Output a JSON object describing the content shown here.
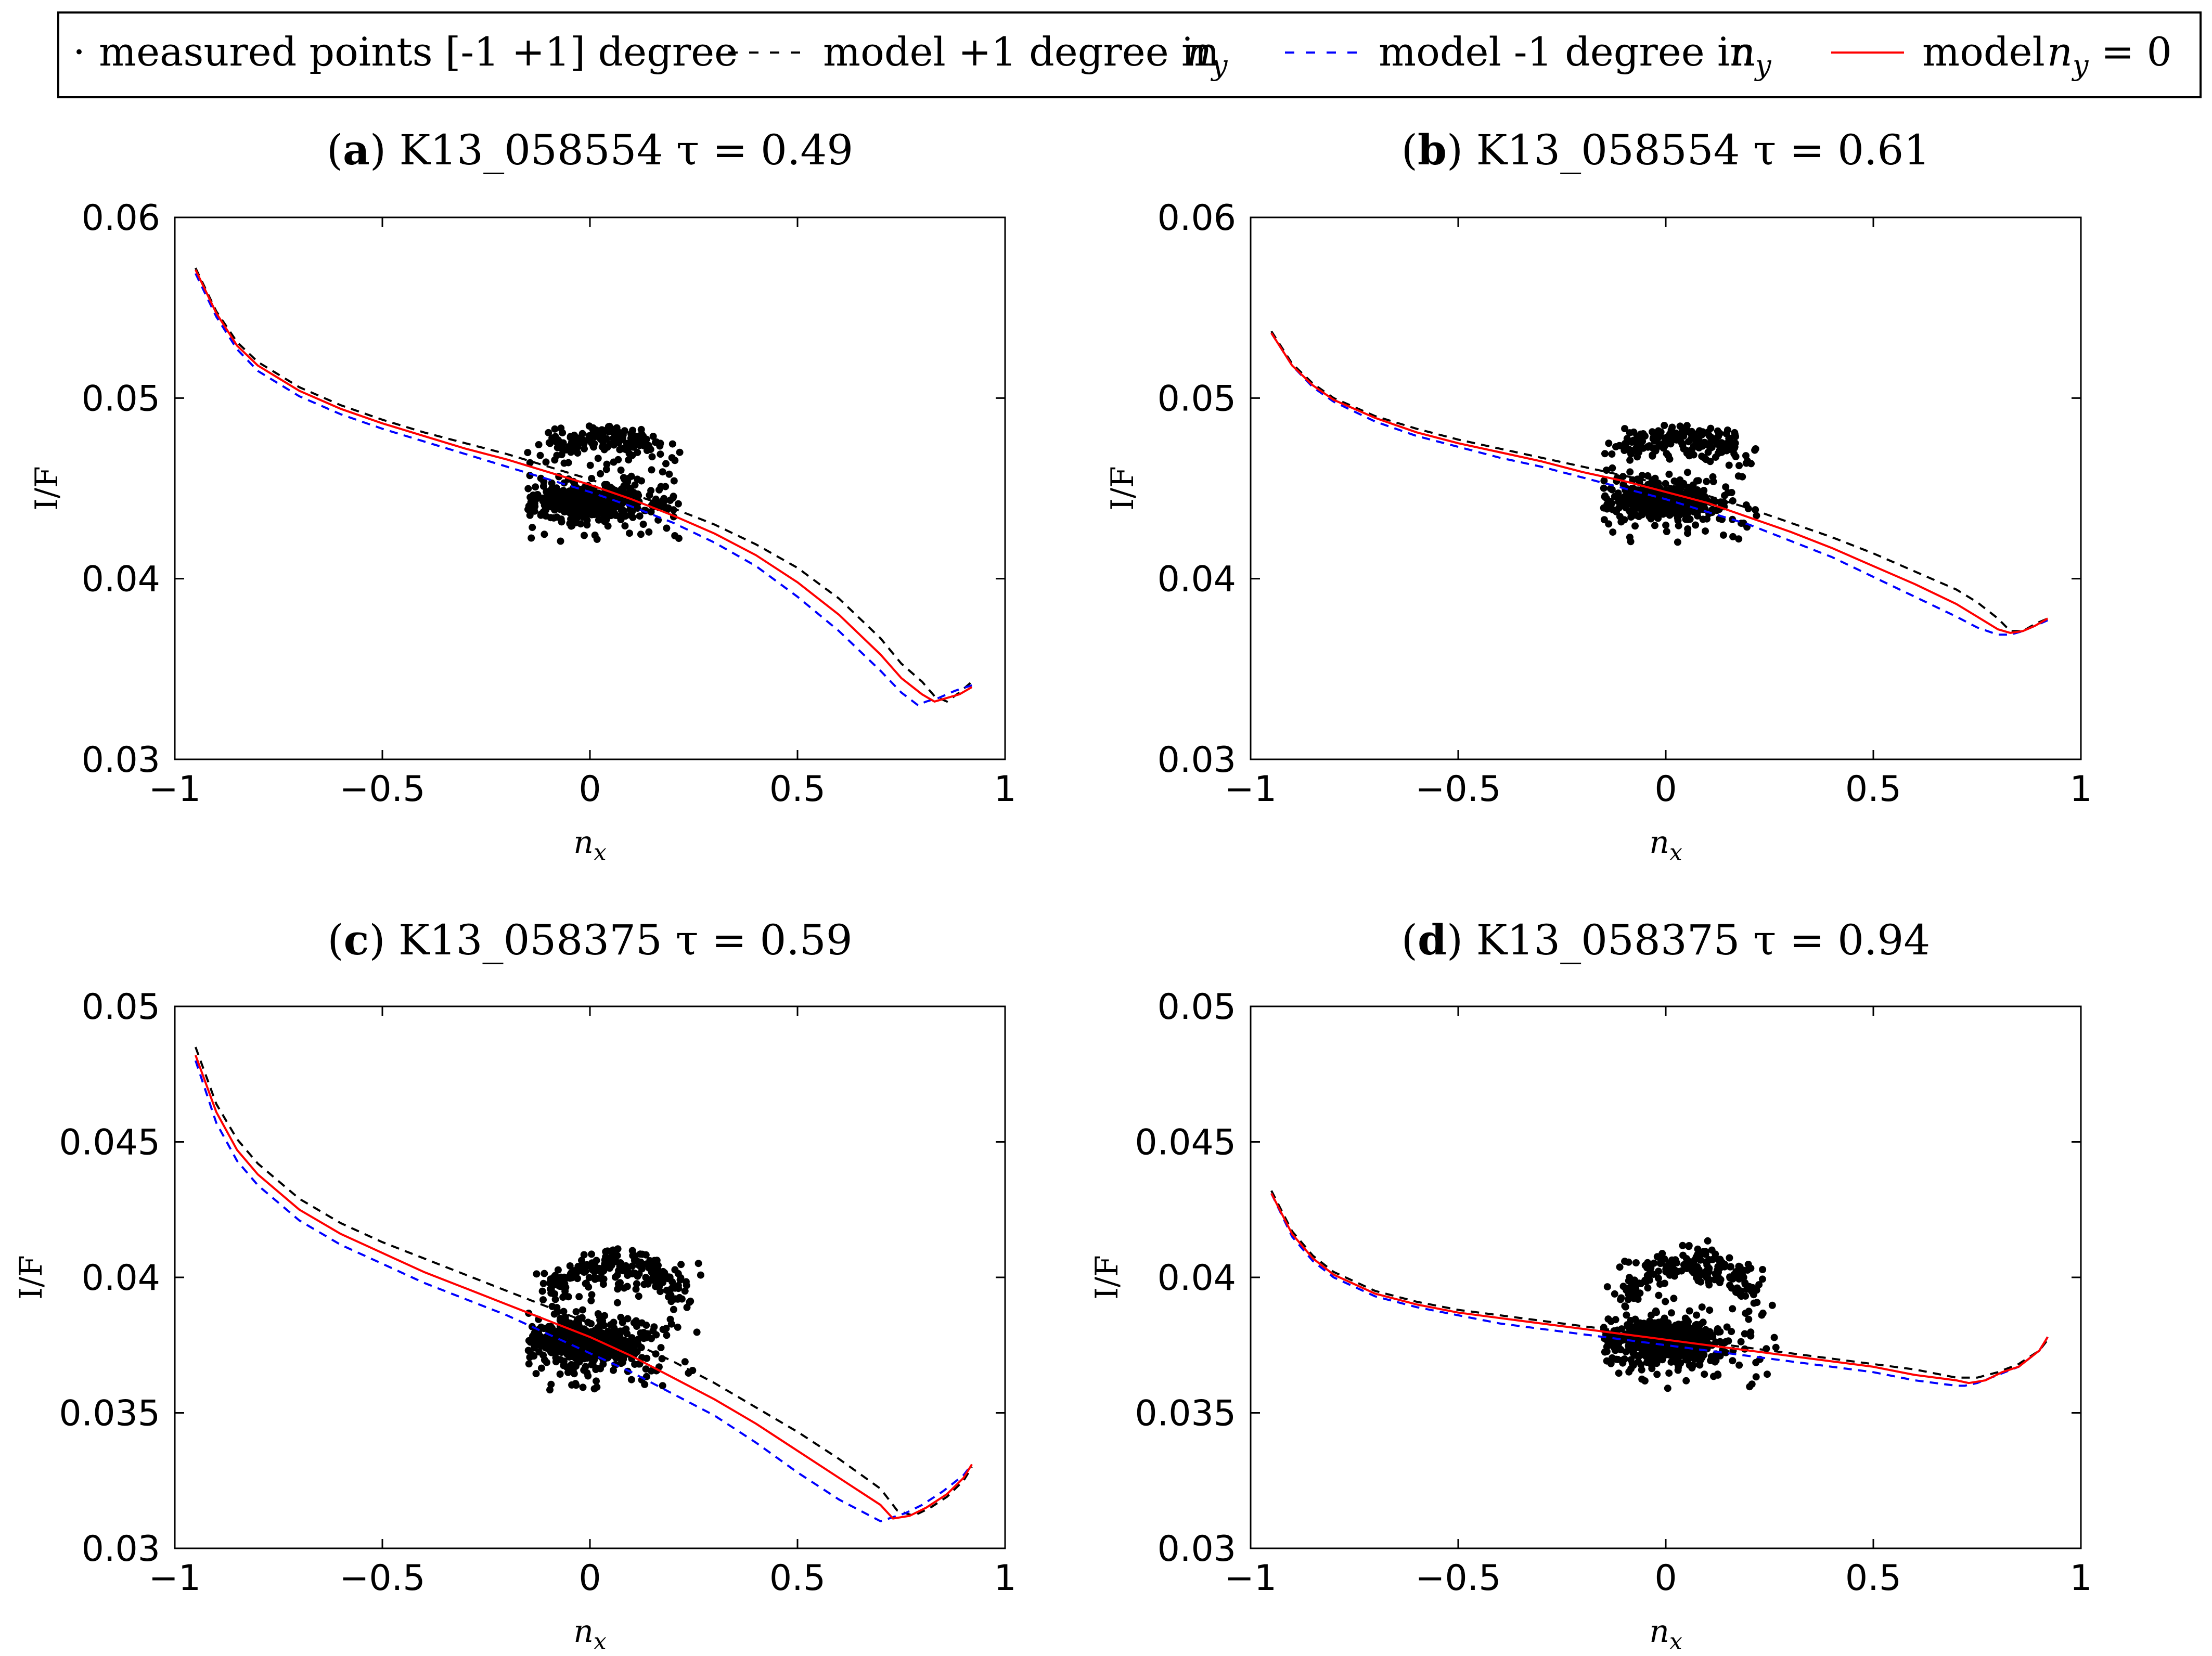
{
  "legend": {
    "entries": [
      {
        "symbol": "·",
        "label": "measured points [-1 +1] degree",
        "style": "dots",
        "color": "#000000"
      },
      {
        "label": "model +1 degree in",
        "math": "n_y",
        "style": "dashed",
        "color": "#000000"
      },
      {
        "label": "model -1 degree in",
        "math": "n_y",
        "style": "dashed",
        "color": "#0000ff"
      },
      {
        "label": "model",
        "math": "n_y = 0",
        "style": "solid",
        "color": "#ff0000"
      }
    ]
  },
  "colors": {
    "measured": "#000000",
    "model_plus": "#000000",
    "model_minus": "#0000ff",
    "model_zero": "#ff0000"
  },
  "chart_data": [
    {
      "type": "scatter",
      "panel": "(a)",
      "panel_letter": "a",
      "title": "K13_058554",
      "tau_label": "τ = 0.49",
      "xlabel": "n_x",
      "ylabel": "I/F",
      "xlim": [
        -1,
        1
      ],
      "ylim": [
        0.03,
        0.06
      ],
      "xticks": [
        -1,
        -0.5,
        0,
        0.5,
        1
      ],
      "xtick_labels": [
        "−1",
        "−0.5",
        "0",
        "0.5",
        "1"
      ],
      "yticks": [
        0.03,
        0.04,
        0.05,
        0.06
      ],
      "ytick_labels": [
        "0.03",
        "0.04",
        "0.05",
        "0.06"
      ],
      "series": [
        {
          "name": "model +1 degree in n_y",
          "style": "dashed",
          "color": "#000000",
          "x": [
            -0.95,
            -0.9,
            -0.85,
            -0.8,
            -0.7,
            -0.6,
            -0.5,
            -0.4,
            -0.3,
            -0.2,
            -0.1,
            0,
            0.1,
            0.2,
            0.3,
            0.4,
            0.5,
            0.6,
            0.7,
            0.75,
            0.8,
            0.83,
            0.86,
            0.89,
            0.92
          ],
          "y": [
            0.0572,
            0.0548,
            0.0531,
            0.052,
            0.0506,
            0.0496,
            0.0488,
            0.0481,
            0.0475,
            0.0469,
            0.0462,
            0.0455,
            0.0447,
            0.0439,
            0.043,
            0.0419,
            0.0406,
            0.0389,
            0.0367,
            0.0353,
            0.0343,
            0.0335,
            0.0332,
            0.0337,
            0.0343
          ]
        },
        {
          "name": "model -1 degree in n_y",
          "style": "dashed",
          "color": "#0000ff",
          "x": [
            -0.95,
            -0.9,
            -0.85,
            -0.8,
            -0.7,
            -0.6,
            -0.5,
            -0.4,
            -0.3,
            -0.2,
            -0.1,
            0,
            0.1,
            0.2,
            0.3,
            0.4,
            0.5,
            0.6,
            0.7,
            0.75,
            0.79,
            0.81,
            0.84,
            0.88,
            0.92
          ],
          "y": [
            0.0569,
            0.0545,
            0.0527,
            0.0515,
            0.0501,
            0.0491,
            0.0483,
            0.0476,
            0.0469,
            0.0462,
            0.0455,
            0.0448,
            0.044,
            0.0431,
            0.042,
            0.0407,
            0.039,
            0.0371,
            0.0349,
            0.0337,
            0.033,
            0.0332,
            0.0334,
            0.0338,
            0.0341
          ]
        },
        {
          "name": "model n_y = 0",
          "style": "solid",
          "color": "#ff0000",
          "x": [
            -0.95,
            -0.9,
            -0.85,
            -0.8,
            -0.7,
            -0.6,
            -0.5,
            -0.4,
            -0.3,
            -0.2,
            -0.1,
            0,
            0.1,
            0.2,
            0.3,
            0.4,
            0.5,
            0.6,
            0.7,
            0.75,
            0.8,
            0.83,
            0.86,
            0.89,
            0.92
          ],
          "y": [
            0.0571,
            0.0547,
            0.0529,
            0.0518,
            0.0504,
            0.0494,
            0.0486,
            0.0479,
            0.0472,
            0.0466,
            0.0459,
            0.0452,
            0.0444,
            0.0435,
            0.0425,
            0.0413,
            0.0398,
            0.038,
            0.0358,
            0.0345,
            0.0336,
            0.0332,
            0.0334,
            0.0336,
            0.034
          ]
        }
      ],
      "scatter": {
        "name": "measured points [-1 +1] degree",
        "x_range": [
          -0.15,
          0.22
        ],
        "y_range": [
          0.042,
          0.0485
        ],
        "dense_center": [
          0.0,
          0.0443
        ],
        "upper_arc": [
          0.0473,
          0.0478
        ],
        "count": 700,
        "seed": 11
      }
    },
    {
      "type": "scatter",
      "panel": "(b)",
      "panel_letter": "b",
      "title": "K13_058554",
      "tau_label": "τ = 0.61",
      "xlabel": "n_x",
      "ylabel": "I/F",
      "xlim": [
        -1,
        1
      ],
      "ylim": [
        0.03,
        0.06
      ],
      "xticks": [
        -1,
        -0.5,
        0,
        0.5,
        1
      ],
      "xtick_labels": [
        "−1",
        "−0.5",
        "0",
        "0.5",
        "1"
      ],
      "yticks": [
        0.03,
        0.04,
        0.05,
        0.06
      ],
      "ytick_labels": [
        "0.03",
        "0.04",
        "0.05",
        "0.06"
      ],
      "series": [
        {
          "name": "model +1 degree in n_y",
          "style": "dashed",
          "color": "#000000",
          "x": [
            -0.95,
            -0.9,
            -0.85,
            -0.8,
            -0.7,
            -0.6,
            -0.5,
            -0.4,
            -0.3,
            -0.2,
            -0.1,
            0,
            0.1,
            0.2,
            0.3,
            0.4,
            0.5,
            0.6,
            0.7,
            0.75,
            0.8,
            0.83,
            0.86,
            0.89,
            0.92
          ],
          "y": [
            0.0537,
            0.0519,
            0.0508,
            0.05,
            0.049,
            0.0483,
            0.0477,
            0.0472,
            0.0467,
            0.0462,
            0.0457,
            0.0452,
            0.0446,
            0.0439,
            0.0431,
            0.0423,
            0.0414,
            0.0404,
            0.0394,
            0.0387,
            0.0378,
            0.0371,
            0.0371,
            0.0375,
            0.0378
          ]
        },
        {
          "name": "model -1 degree in n_y",
          "style": "dashed",
          "color": "#0000ff",
          "x": [
            -0.95,
            -0.9,
            -0.85,
            -0.8,
            -0.7,
            -0.6,
            -0.5,
            -0.4,
            -0.3,
            -0.2,
            -0.1,
            0,
            0.1,
            0.2,
            0.3,
            0.4,
            0.5,
            0.6,
            0.7,
            0.75,
            0.8,
            0.83,
            0.86,
            0.89,
            0.92
          ],
          "y": [
            0.0536,
            0.0518,
            0.0506,
            0.0498,
            0.0487,
            0.0479,
            0.0473,
            0.0467,
            0.0462,
            0.0456,
            0.045,
            0.0444,
            0.0437,
            0.043,
            0.0421,
            0.0412,
            0.0401,
            0.039,
            0.0379,
            0.0373,
            0.0369,
            0.0369,
            0.0371,
            0.0374,
            0.0377
          ]
        },
        {
          "name": "model n_y = 0",
          "style": "solid",
          "color": "#ff0000",
          "x": [
            -0.95,
            -0.9,
            -0.85,
            -0.8,
            -0.7,
            -0.6,
            -0.5,
            -0.4,
            -0.3,
            -0.2,
            -0.1,
            0,
            0.1,
            0.2,
            0.3,
            0.4,
            0.5,
            0.6,
            0.7,
            0.75,
            0.8,
            0.83,
            0.86,
            0.89,
            0.92
          ],
          "y": [
            0.0536,
            0.0518,
            0.0507,
            0.0499,
            0.0489,
            0.0481,
            0.0475,
            0.047,
            0.0465,
            0.0459,
            0.0454,
            0.0448,
            0.0442,
            0.0434,
            0.0426,
            0.0417,
            0.0407,
            0.0397,
            0.0386,
            0.0379,
            0.0372,
            0.037,
            0.0371,
            0.0374,
            0.0378
          ]
        }
      ],
      "scatter": {
        "name": "measured points [-1 +1] degree",
        "x_range": [
          -0.15,
          0.22
        ],
        "y_range": [
          0.042,
          0.0485
        ],
        "dense_center": [
          0.0,
          0.0443
        ],
        "upper_arc": [
          0.0473,
          0.0478
        ],
        "count": 700,
        "seed": 23
      }
    },
    {
      "type": "scatter",
      "panel": "(c)",
      "panel_letter": "c",
      "title": "K13_058375",
      "tau_label": "τ = 0.59",
      "xlabel": "n_x",
      "ylabel": "I/F",
      "xlim": [
        -1,
        1
      ],
      "ylim": [
        0.03,
        0.05
      ],
      "xticks": [
        -1,
        -0.5,
        0,
        0.5,
        1
      ],
      "xtick_labels": [
        "−1",
        "−0.5",
        "0",
        "0.5",
        "1"
      ],
      "yticks": [
        0.03,
        0.035,
        0.04,
        0.045,
        0.05
      ],
      "ytick_labels": [
        "0.03",
        "0.035",
        "0.04",
        "0.045",
        "0.05"
      ],
      "series": [
        {
          "name": "model +1 degree in n_y",
          "style": "dashed",
          "color": "#000000",
          "x": [
            -0.95,
            -0.9,
            -0.85,
            -0.8,
            -0.7,
            -0.6,
            -0.5,
            -0.4,
            -0.3,
            -0.2,
            -0.1,
            0,
            0.1,
            0.2,
            0.3,
            0.4,
            0.5,
            0.6,
            0.7,
            0.74,
            0.78,
            0.82,
            0.86,
            0.9,
            0.92
          ],
          "y": [
            0.0485,
            0.0464,
            0.0451,
            0.0442,
            0.0429,
            0.042,
            0.0413,
            0.0407,
            0.0401,
            0.0395,
            0.0389,
            0.0383,
            0.0376,
            0.0369,
            0.0361,
            0.0352,
            0.0343,
            0.0333,
            0.0322,
            0.0314,
            0.0312,
            0.0315,
            0.0319,
            0.0325,
            0.033
          ]
        },
        {
          "name": "model -1 degree in n_y",
          "style": "dashed",
          "color": "#0000ff",
          "x": [
            -0.95,
            -0.9,
            -0.85,
            -0.8,
            -0.7,
            -0.6,
            -0.5,
            -0.4,
            -0.3,
            -0.2,
            -0.1,
            0,
            0.1,
            0.2,
            0.3,
            0.4,
            0.5,
            0.6,
            0.7,
            0.72,
            0.76,
            0.8,
            0.85,
            0.9,
            0.92
          ],
          "y": [
            0.048,
            0.0457,
            0.0443,
            0.0434,
            0.0421,
            0.0412,
            0.0405,
            0.0398,
            0.0392,
            0.0386,
            0.0379,
            0.0372,
            0.0365,
            0.0357,
            0.0349,
            0.0339,
            0.0328,
            0.0318,
            0.031,
            0.0311,
            0.0313,
            0.0316,
            0.0321,
            0.0327,
            0.0331
          ]
        },
        {
          "name": "model n_y = 0",
          "style": "solid",
          "color": "#ff0000",
          "x": [
            -0.95,
            -0.9,
            -0.85,
            -0.8,
            -0.7,
            -0.6,
            -0.5,
            -0.4,
            -0.3,
            -0.2,
            -0.1,
            0,
            0.1,
            0.2,
            0.3,
            0.4,
            0.5,
            0.6,
            0.7,
            0.73,
            0.77,
            0.81,
            0.86,
            0.9,
            0.92
          ],
          "y": [
            0.0482,
            0.0461,
            0.0447,
            0.0438,
            0.0425,
            0.0416,
            0.0409,
            0.0402,
            0.0396,
            0.039,
            0.0384,
            0.0378,
            0.0371,
            0.0363,
            0.0355,
            0.0346,
            0.0336,
            0.0326,
            0.0316,
            0.0311,
            0.0312,
            0.0315,
            0.032,
            0.0326,
            0.0331
          ]
        }
      ],
      "scatter": {
        "name": "measured points [-1 +1] degree",
        "x_range": [
          -0.15,
          0.27
        ],
        "y_range": [
          0.0358,
          0.0415
        ],
        "dense_center": [
          0.0,
          0.0376
        ],
        "upper_arc": [
          0.0395,
          0.0405
        ],
        "count": 800,
        "seed": 37
      }
    },
    {
      "type": "scatter",
      "panel": "(d)",
      "panel_letter": "d",
      "title": "K13_058375",
      "tau_label": "τ = 0.94",
      "xlabel": "n_x",
      "ylabel": "I/F",
      "xlim": [
        -1,
        1
      ],
      "ylim": [
        0.03,
        0.05
      ],
      "xticks": [
        -1,
        -0.5,
        0,
        0.5,
        1
      ],
      "xtick_labels": [
        "−1",
        "−0.5",
        "0",
        "0.5",
        "1"
      ],
      "yticks": [
        0.03,
        0.035,
        0.04,
        0.045,
        0.05
      ],
      "ytick_labels": [
        "0.03",
        "0.035",
        "0.04",
        "0.045",
        "0.05"
      ],
      "series": [
        {
          "name": "model +1 degree in n_y",
          "style": "dashed",
          "color": "#000000",
          "x": [
            -0.95,
            -0.9,
            -0.85,
            -0.8,
            -0.7,
            -0.6,
            -0.5,
            -0.4,
            -0.3,
            -0.2,
            -0.1,
            0,
            0.1,
            0.2,
            0.3,
            0.4,
            0.5,
            0.6,
            0.7,
            0.75,
            0.8,
            0.85,
            0.9,
            0.92
          ],
          "y": [
            0.0432,
            0.0417,
            0.0408,
            0.0402,
            0.0395,
            0.0391,
            0.0388,
            0.0386,
            0.0384,
            0.0382,
            0.038,
            0.0378,
            0.0376,
            0.0374,
            0.0372,
            0.037,
            0.0368,
            0.0366,
            0.0363,
            0.0363,
            0.0365,
            0.0368,
            0.0373,
            0.0377
          ]
        },
        {
          "name": "model -1 degree in n_y",
          "style": "dashed",
          "color": "#0000ff",
          "x": [
            -0.95,
            -0.9,
            -0.85,
            -0.8,
            -0.7,
            -0.6,
            -0.5,
            -0.4,
            -0.3,
            -0.2,
            -0.1,
            0,
            0.1,
            0.2,
            0.3,
            0.4,
            0.5,
            0.6,
            0.7,
            0.72,
            0.75,
            0.8,
            0.85,
            0.9,
            0.92
          ],
          "y": [
            0.0431,
            0.0415,
            0.0406,
            0.04,
            0.0393,
            0.0389,
            0.0386,
            0.0383,
            0.0381,
            0.0379,
            0.0377,
            0.0375,
            0.0373,
            0.0371,
            0.0369,
            0.0367,
            0.0365,
            0.0362,
            0.036,
            0.036,
            0.0361,
            0.0364,
            0.0367,
            0.0373,
            0.0378
          ]
        },
        {
          "name": "model n_y = 0",
          "style": "solid",
          "color": "#ff0000",
          "x": [
            -0.95,
            -0.9,
            -0.85,
            -0.8,
            -0.7,
            -0.6,
            -0.5,
            -0.4,
            -0.3,
            -0.2,
            -0.1,
            0,
            0.1,
            0.2,
            0.3,
            0.4,
            0.5,
            0.6,
            0.7,
            0.73,
            0.77,
            0.81,
            0.85,
            0.9,
            0.92
          ],
          "y": [
            0.0431,
            0.0416,
            0.0407,
            0.0401,
            0.0394,
            0.039,
            0.0387,
            0.0385,
            0.0383,
            0.0381,
            0.0379,
            0.0377,
            0.0375,
            0.0373,
            0.0371,
            0.0369,
            0.0367,
            0.0364,
            0.0362,
            0.0361,
            0.0362,
            0.0365,
            0.0367,
            0.0373,
            0.0378
          ]
        }
      ],
      "scatter": {
        "name": "measured points [-1 +1] degree",
        "x_range": [
          -0.15,
          0.27
        ],
        "y_range": [
          0.0358,
          0.0415
        ],
        "dense_center": [
          0.0,
          0.0376
        ],
        "upper_arc": [
          0.0395,
          0.0405
        ],
        "count": 800,
        "seed": 53
      }
    }
  ]
}
